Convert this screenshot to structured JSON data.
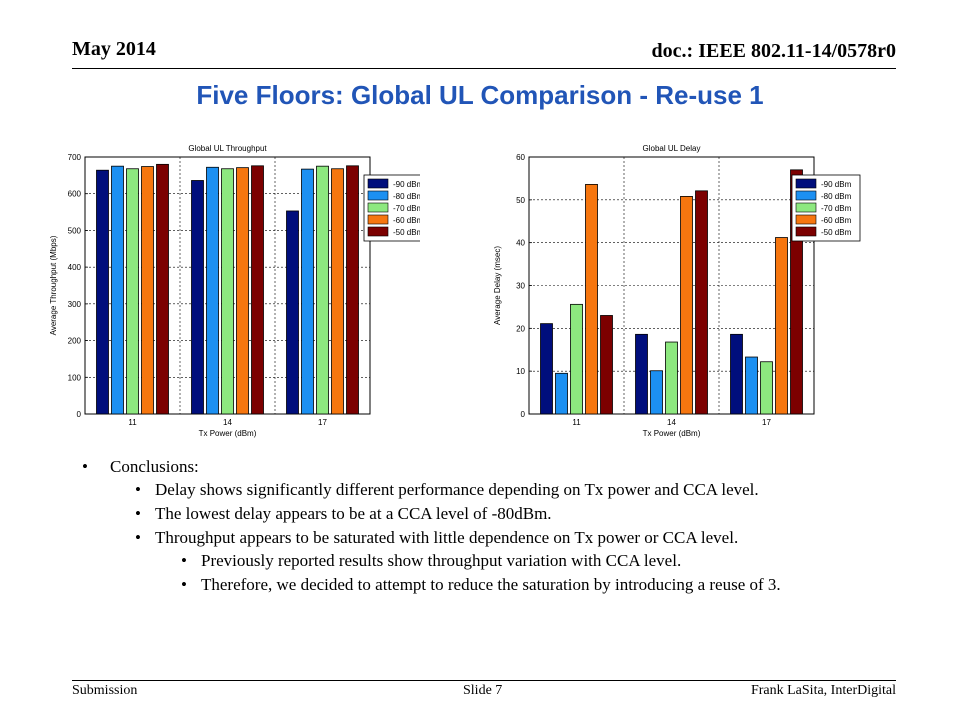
{
  "header": {
    "date": "May 2014",
    "doc_id": "doc.: IEEE 802.11-14/0578r0"
  },
  "title": "Five Floors: Global UL Comparison - Re-use 1",
  "chart_data": [
    {
      "type": "bar",
      "title": "Global UL Throughput",
      "xlabel": "Tx Power (dBm)",
      "ylabel": "Average Throughput (Mbps)",
      "ylim": [
        0,
        700
      ],
      "yticks": [
        0,
        100,
        200,
        300,
        400,
        500,
        600,
        700
      ],
      "categories": [
        "11",
        "14",
        "17"
      ],
      "grid": true,
      "legend_position": "top-right",
      "series": [
        {
          "name": "-90 dBm",
          "color": "#000e7c",
          "values": [
            664,
            636,
            553
          ]
        },
        {
          "name": "-80 dBm",
          "color": "#1c90f2",
          "values": [
            675,
            672,
            667
          ]
        },
        {
          "name": "-70 dBm",
          "color": "#8de87f",
          "values": [
            668,
            668,
            675
          ]
        },
        {
          "name": "-60 dBm",
          "color": "#f6760f",
          "values": [
            674,
            671,
            668
          ]
        },
        {
          "name": "-50 dBm",
          "color": "#7c0000",
          "values": [
            680,
            676,
            676
          ]
        }
      ]
    },
    {
      "type": "bar",
      "title": "Global UL Delay",
      "xlabel": "Tx Power (dBm)",
      "ylabel": "Average Delay (msec)",
      "ylim": [
        0,
        60
      ],
      "yticks": [
        0,
        10,
        20,
        30,
        40,
        50,
        60
      ],
      "categories": [
        "11",
        "14",
        "17"
      ],
      "grid": true,
      "legend_position": "top-right",
      "series": [
        {
          "name": "-90 dBm",
          "color": "#000e7c",
          "values": [
            21.1,
            18.6,
            18.6
          ]
        },
        {
          "name": "-80 dBm",
          "color": "#1c90f2",
          "values": [
            9.5,
            10.1,
            13.3
          ]
        },
        {
          "name": "-70 dBm",
          "color": "#8de87f",
          "values": [
            25.6,
            16.8,
            12.2
          ]
        },
        {
          "name": "-60 dBm",
          "color": "#f6760f",
          "values": [
            53.6,
            50.8,
            41.2
          ]
        },
        {
          "name": "-50 dBm",
          "color": "#7c0000",
          "values": [
            23.0,
            52.1,
            57.0
          ]
        }
      ]
    }
  ],
  "conclusions": {
    "heading": "Conclusions:",
    "items": [
      "Delay shows significantly different performance depending on Tx power and CCA level.",
      "The lowest delay appears to be at a CCA level of -80dBm.",
      "Throughput appears to be saturated with little dependence on Tx power or CCA level."
    ],
    "subitems": [
      "Previously reported results show throughput variation with CCA level.",
      "Therefore, we decided to attempt to reduce the saturation by introducing a reuse of 3."
    ]
  },
  "footer": {
    "left": "Submission",
    "center": "Slide 7",
    "right": "Frank LaSita, InterDigital"
  }
}
